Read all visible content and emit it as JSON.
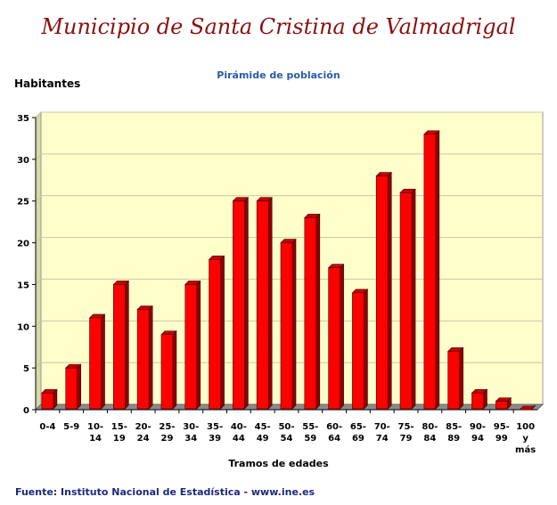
{
  "title": "Municipio de Santa Cristina de Valmadrigal",
  "subtitle": "Pirámide de población",
  "footer": "Fuente: Instituto Nacional de Estadística - www.ine.es",
  "chart_data": {
    "type": "bar",
    "title": "Pirámide de población",
    "ylabel": "Habitantes",
    "xlabel": "Tramos de edades",
    "categories": [
      "0-4",
      "5-9",
      "10-14",
      "15-19",
      "20-24",
      "25-29",
      "30-34",
      "35-39",
      "40-44",
      "45-49",
      "50-54",
      "55-59",
      "60-64",
      "65-69",
      "70-74",
      "75-79",
      "80-84",
      "85-89",
      "90-94",
      "95-99",
      "100 y más"
    ],
    "category_lines": [
      [
        "0-4"
      ],
      [
        "5-9"
      ],
      [
        "10-",
        "14"
      ],
      [
        "15-",
        "19"
      ],
      [
        "20-",
        "24"
      ],
      [
        "25-",
        "29"
      ],
      [
        "30-",
        "34"
      ],
      [
        "35-",
        "39"
      ],
      [
        "40-",
        "44"
      ],
      [
        "45-",
        "49"
      ],
      [
        "50-",
        "54"
      ],
      [
        "55-",
        "59"
      ],
      [
        "60-",
        "64"
      ],
      [
        "65-",
        "69"
      ],
      [
        "70-",
        "74"
      ],
      [
        "75-",
        "79"
      ],
      [
        "80-",
        "84"
      ],
      [
        "85-",
        "89"
      ],
      [
        "90-",
        "94"
      ],
      [
        "95-",
        "99"
      ],
      [
        "100",
        "y",
        "más"
      ]
    ],
    "values": [
      2,
      5,
      11,
      15,
      12,
      9,
      15,
      18,
      25,
      25,
      20,
      23,
      17,
      14,
      28,
      26,
      33,
      7,
      2,
      1,
      0
    ],
    "ylim": [
      0,
      35
    ],
    "yticks": [
      0,
      5,
      10,
      15,
      20,
      25,
      30,
      35
    ],
    "grid": true,
    "legend": "none",
    "colors": {
      "bar": "#ff0000",
      "bar_side": "#8e0000",
      "bar_top": "#c40000",
      "plot_bg": "#ffffcc",
      "plot_wall": "#d8d8a8",
      "floor": "#8a8a8a",
      "grid": "#c8c8a0"
    }
  }
}
